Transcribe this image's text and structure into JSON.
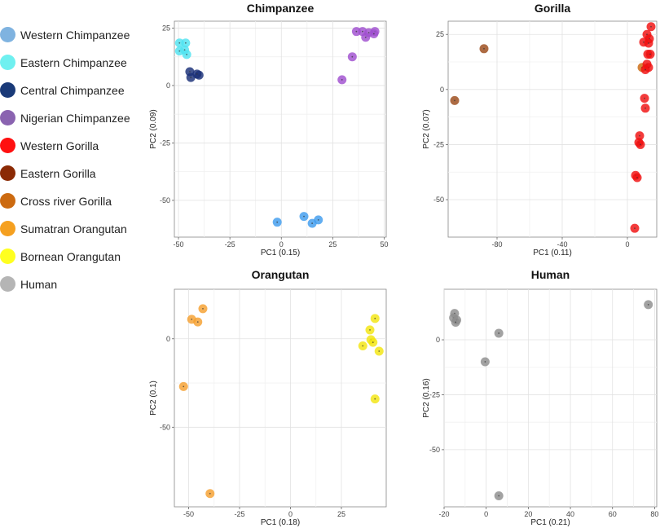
{
  "legend": {
    "items": [
      {
        "label": "Western Chimpanzee",
        "color": "#7fb3e0"
      },
      {
        "label": "Eastern Chimpanzee",
        "color": "#6ff0f0"
      },
      {
        "label": "Central Chimpanzee",
        "color": "#1a3a78"
      },
      {
        "label": "Nigerian Chimpanzee",
        "color": "#8a63b0"
      },
      {
        "label": "Western Gorilla",
        "color": "#ff1010"
      },
      {
        "label": "Eastern Gorilla",
        "color": "#8b2a05"
      },
      {
        "label": "Cross river Gorilla",
        "color": "#cc6a10"
      },
      {
        "label": "Sumatran Orangutan",
        "color": "#f5a020"
      },
      {
        "label": "Bornean Orangutan",
        "color": "#ffff20"
      },
      {
        "label": "Human",
        "color": "#b5b5b5"
      }
    ]
  },
  "chart_data": [
    {
      "type": "scatter",
      "title": "Chimpanzee",
      "xlabel": "PC1 (0.15)",
      "ylabel": "PC2 (0.09)",
      "xlim": [
        -52,
        51
      ],
      "ylim": [
        -66,
        28
      ],
      "xticks": [
        -50,
        -25,
        0,
        25,
        50
      ],
      "yticks": [
        25,
        0,
        -25,
        -50
      ],
      "series": [
        {
          "name": "Eastern Chimpanzee",
          "color": "#4fe3f0",
          "points": [
            [
              -49.5,
              18.5
            ],
            [
              -46.5,
              18.5
            ],
            [
              -49.5,
              15
            ],
            [
              -47,
              15.5
            ],
            [
              -46,
              13.5
            ]
          ]
        },
        {
          "name": "Central Chimpanzee",
          "color": "#1a2f78",
          "points": [
            [
              -44.5,
              6
            ],
            [
              -40,
              4.5
            ],
            [
              -44,
              3.5
            ],
            [
              -41,
              5
            ]
          ]
        },
        {
          "name": "Nigerian Chimpanzee",
          "color": "#a04fd0",
          "points": [
            [
              36.5,
              23.5
            ],
            [
              39.5,
              23.5
            ],
            [
              42.5,
              23
            ],
            [
              45.5,
              23.5
            ],
            [
              45,
              22.5
            ],
            [
              41,
              21
            ],
            [
              34.5,
              12.5
            ],
            [
              29.5,
              2.5
            ]
          ]
        },
        {
          "name": "Western Chimpanzee",
          "color": "#3f9cee",
          "points": [
            [
              -2,
              -59.5
            ],
            [
              11,
              -57
            ],
            [
              15,
              -60
            ],
            [
              18,
              -58.5
            ]
          ]
        }
      ]
    },
    {
      "type": "scatter",
      "title": "Gorilla",
      "xlabel": "PC1 (0.11)",
      "ylabel": "PC2 (0.07)",
      "xlim": [
        -110,
        18
      ],
      "ylim": [
        -67,
        31
      ],
      "xticks": [
        -80,
        -40,
        0
      ],
      "yticks": [
        25,
        0,
        -25,
        -50
      ],
      "series": [
        {
          "name": "Eastern Gorilla",
          "color": "#9b4a1a",
          "points": [
            [
              -88,
              18.5
            ],
            [
              -106,
              -5
            ]
          ]
        },
        {
          "name": "Cross river Gorilla",
          "color": "#cc6a10",
          "points": [
            [
              9,
              10
            ]
          ]
        },
        {
          "name": "Western Gorilla",
          "color": "#f01010",
          "points": [
            [
              14.5,
              28.5
            ],
            [
              12,
              25
            ],
            [
              13.5,
              23
            ],
            [
              10,
              21.5
            ],
            [
              13,
              21
            ],
            [
              12.5,
              16
            ],
            [
              14,
              16
            ],
            [
              12,
              11.5
            ],
            [
              13,
              10
            ],
            [
              11,
              9
            ],
            [
              10.5,
              -4
            ],
            [
              11,
              -8.5
            ],
            [
              7.5,
              -21
            ],
            [
              7,
              -24
            ],
            [
              8,
              -25
            ],
            [
              5,
              -39
            ],
            [
              6,
              -40
            ],
            [
              4.5,
              -63
            ]
          ]
        }
      ]
    },
    {
      "type": "scatter",
      "title": "Orangutan",
      "xlabel": "PC1 (0.18)",
      "ylabel": "PC2 (0.1)",
      "xlim": [
        -57,
        47
      ],
      "ylim": [
        -95,
        28
      ],
      "xticks": [
        -50,
        -25,
        0,
        25
      ],
      "yticks": [
        0,
        -50
      ],
      "series": [
        {
          "name": "Sumatran Orangutan",
          "color": "#f5a030",
          "points": [
            [
              -43,
              17
            ],
            [
              -48.5,
              11
            ],
            [
              -45.5,
              9.5
            ],
            [
              -52.5,
              -27
            ],
            [
              -39.5,
              -87.5
            ]
          ]
        },
        {
          "name": "Bornean Orangutan",
          "color": "#f3e510",
          "points": [
            [
              41.5,
              11.5
            ],
            [
              39,
              5
            ],
            [
              39.5,
              -0.5
            ],
            [
              40.5,
              -2
            ],
            [
              35.5,
              -4
            ],
            [
              43.5,
              -7
            ],
            [
              41.5,
              -34
            ]
          ]
        }
      ]
    },
    {
      "type": "scatter",
      "title": "Human",
      "xlabel": "PC1 (0.21)",
      "ylabel": "PC2 (0.16)",
      "xlim": [
        -20,
        81
      ],
      "ylim": [
        -76,
        23
      ],
      "xticks": [
        -20,
        0,
        20,
        40,
        60,
        80
      ],
      "yticks": [
        0,
        -25,
        -50
      ],
      "series": [
        {
          "name": "Human",
          "color": "#8e8e8e",
          "points": [
            [
              -15,
              12
            ],
            [
              -15.5,
              10
            ],
            [
              -14,
              9
            ],
            [
              -14.5,
              8
            ],
            [
              6,
              3
            ],
            [
              -0.5,
              -10
            ],
            [
              77,
              16
            ],
            [
              6,
              -71
            ]
          ]
        }
      ]
    }
  ]
}
